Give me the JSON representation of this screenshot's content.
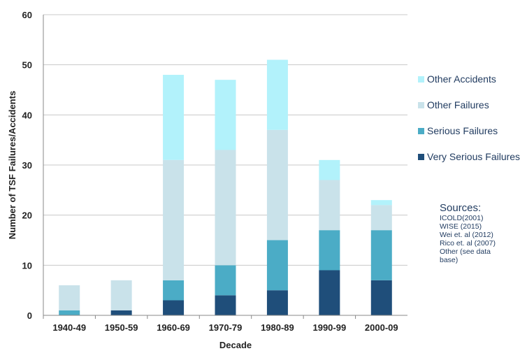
{
  "chart_data": {
    "type": "bar",
    "stacked": true,
    "categories": [
      "1940-49",
      "1950-59",
      "1960-69",
      "1970-79",
      "1980-89",
      "1990-99",
      "2000-09"
    ],
    "series": [
      {
        "name": "Very Serious Failures",
        "color": "#1f4e7a",
        "values": [
          0,
          1,
          3,
          4,
          5,
          9,
          7
        ]
      },
      {
        "name": "Serious Failures",
        "color": "#4bacc6",
        "values": [
          1,
          0,
          4,
          6,
          10,
          8,
          10
        ]
      },
      {
        "name": "Other Failures",
        "color": "#c9e2ea",
        "values": [
          5,
          6,
          24,
          23,
          22,
          10,
          5
        ]
      },
      {
        "name": "Other Accidents",
        "color": "#b2f2fb",
        "values": [
          0,
          0,
          17,
          14,
          14,
          4,
          1
        ]
      }
    ],
    "xlabel": "Decade",
    "ylabel": "Number of TSF Failures/Accidents",
    "ylim": [
      0,
      60
    ],
    "yticks": [
      0,
      10,
      20,
      30,
      40,
      50,
      60
    ],
    "grid": true,
    "legend_position": "right"
  },
  "sources": {
    "heading": "Sources:",
    "lines": [
      "ICOLD(2001)",
      "WISE (2015)",
      "Wei  et. al (2012)",
      "Rico et. al (2007)",
      "Other (see data",
      "base)"
    ]
  }
}
